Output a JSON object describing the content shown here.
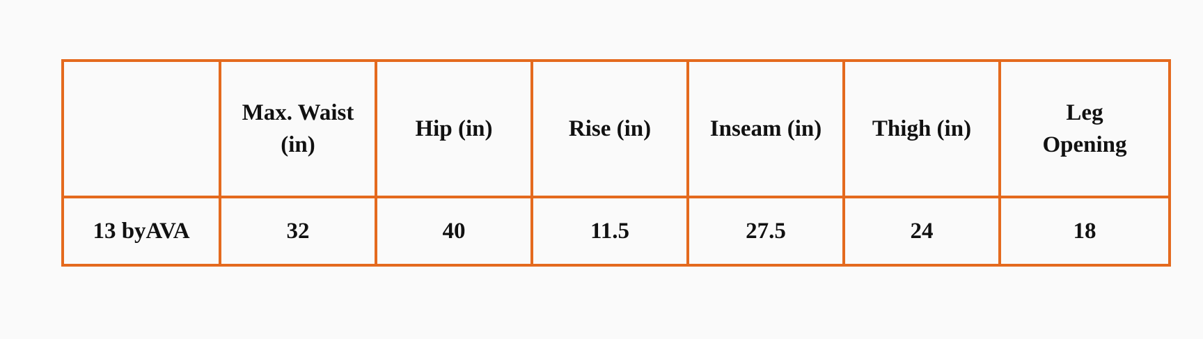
{
  "table": {
    "columns": [
      "Max. Waist (in)",
      "Hip (in)",
      "Rise (in)",
      "Inseam (in)",
      "Thigh (in)",
      "Leg Opening"
    ],
    "rows": [
      [
        "13 byAVA",
        32,
        40,
        11.5,
        27.5,
        24,
        18
      ]
    ]
  }
}
